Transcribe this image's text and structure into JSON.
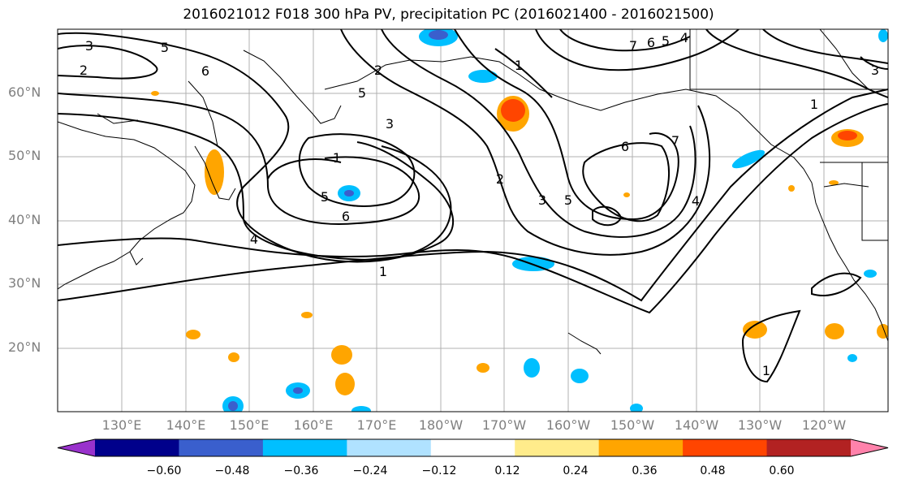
{
  "title": "2016021012 F018 300 hPa PV, precipitation PC (2016021400 - 2016021500)",
  "map": {
    "lat_ticks": [
      "60°N",
      "50°N",
      "40°N",
      "30°N",
      "20°N"
    ],
    "lon_ticks": [
      "130°E",
      "140°E",
      "150°E",
      "160°E",
      "170°E",
      "180°W",
      "170°W",
      "160°W",
      "150°W",
      "140°W",
      "130°W",
      "120°W"
    ],
    "contour_labels": [
      "3",
      "2",
      "5",
      "6",
      "2",
      "5",
      "3",
      "1",
      "5",
      "6",
      "4",
      "1",
      "2",
      "3",
      "5",
      "6",
      "7",
      "4",
      "1",
      "3",
      "7",
      "6",
      "5",
      "4",
      "1",
      "1"
    ]
  },
  "colorbar": {
    "ticks": [
      "−0.60",
      "−0.48",
      "−0.36",
      "−0.24",
      "−0.12",
      "0.12",
      "0.24",
      "0.36",
      "0.48",
      "0.60"
    ],
    "colors": [
      "#9932cc",
      "#00008b",
      "#3a5fcd",
      "#00bfff",
      "#b0e2ff",
      "#ffffff",
      "#ffec8b",
      "#ffa500",
      "#ff4500",
      "#b22222",
      "#ff82ab"
    ]
  }
}
